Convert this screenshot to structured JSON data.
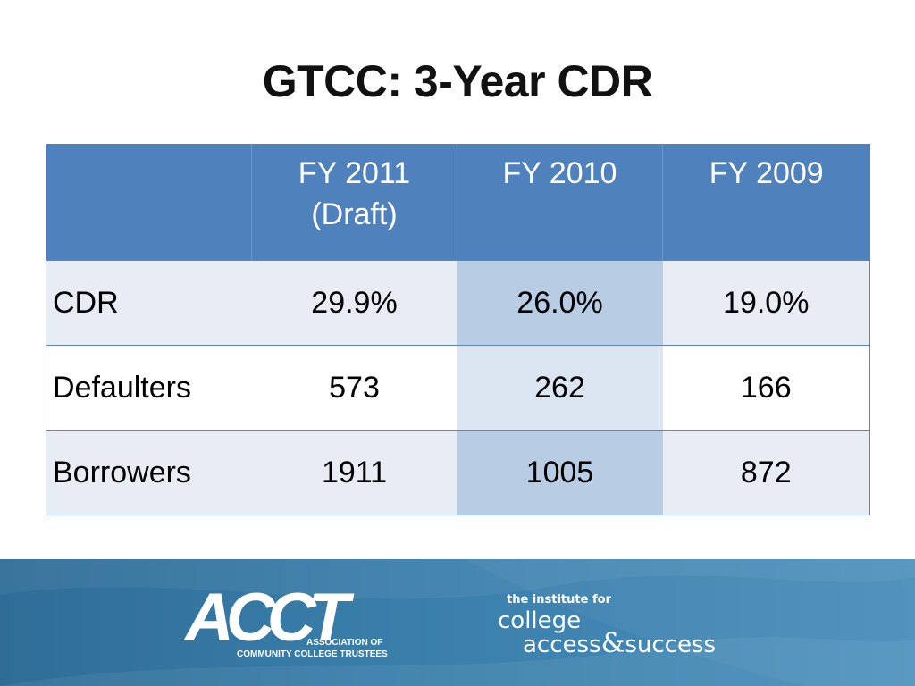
{
  "slide": {
    "title": "GTCC: 3-Year CDR"
  },
  "table": {
    "headers": [
      "",
      "FY 2011\n(Draft)",
      "FY 2010",
      "FY 2009"
    ],
    "header_lines": {
      "fy2011_line1": "FY 2011",
      "fy2011_line2": "(Draft)",
      "fy2010": "FY 2010",
      "fy2009": "FY 2009"
    },
    "rows": [
      {
        "label": "CDR",
        "values": [
          "29.9%",
          "26.0%",
          "19.0%"
        ]
      },
      {
        "label": "Defaulters",
        "values": [
          "573",
          "262",
          "166"
        ]
      },
      {
        "label": "Borrowers",
        "values": [
          "1911",
          "1005",
          "872"
        ]
      }
    ]
  },
  "footer": {
    "acct": {
      "letters": "ACCT",
      "line1": "ASSOCIATION OF",
      "line2": "COMMUNITY COLLEGE TRUSTEES"
    },
    "ticas": {
      "line1": "the institute for",
      "line2": "college",
      "line3_a": "access",
      "line3_amp": "&",
      "line3_b": "success"
    }
  },
  "colors": {
    "header_bg": "#4f81bd",
    "row_odd": "#e8ecf5",
    "row_even": "#ffffff",
    "highlight_odd": "#b8cce4",
    "highlight_even": "#dce6f2",
    "footer_bg": "#3a7fab"
  }
}
